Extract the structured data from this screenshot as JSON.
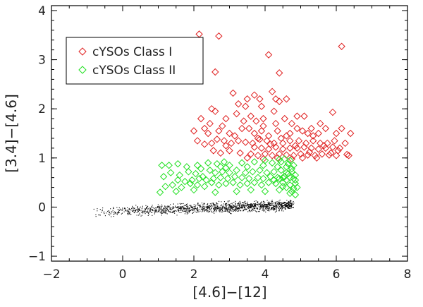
{
  "chart_data": {
    "type": "scatter",
    "title": "",
    "xlabel": "[4.6]−[12]",
    "ylabel": "[3.4]−[4.6]",
    "xlim": [
      -2,
      8
    ],
    "ylim": [
      -1.1,
      4.1
    ],
    "x_ticks": [
      "−2",
      "0",
      "2",
      "4",
      "6",
      "8"
    ],
    "y_ticks": [
      "−1",
      "0",
      "1",
      "2",
      "3",
      "4"
    ],
    "grid": false,
    "legend_position": "top-left",
    "legend": [
      {
        "label": "cYSOs Class I",
        "marker": "diamond",
        "color": "#e02020"
      },
      {
        "label": "cYSOs Class II",
        "marker": "diamond",
        "color": "#22e022"
      }
    ],
    "series": [
      {
        "name": "cYSOs Class I",
        "marker": "diamond",
        "color": "#e02020",
        "points": [
          [
            2.15,
            3.52
          ],
          [
            2.7,
            3.48
          ],
          [
            4.1,
            3.1
          ],
          [
            6.15,
            3.27
          ],
          [
            2.6,
            2.75
          ],
          [
            4.4,
            2.73
          ],
          [
            3.1,
            2.32
          ],
          [
            3.5,
            2.2
          ],
          [
            3.7,
            2.28
          ],
          [
            3.85,
            2.2
          ],
          [
            3.9,
            2.05
          ],
          [
            4.2,
            2.35
          ],
          [
            4.3,
            2.2
          ],
          [
            4.4,
            2.15
          ],
          [
            4.6,
            2.2
          ],
          [
            2.2,
            1.8
          ],
          [
            2.5,
            2.0
          ],
          [
            2.6,
            1.95
          ],
          [
            3.25,
            2.1
          ],
          [
            3.45,
            2.05
          ],
          [
            3.6,
            1.85
          ],
          [
            3.75,
            1.75
          ],
          [
            3.95,
            1.8
          ],
          [
            4.25,
            1.95
          ],
          [
            4.3,
            1.7
          ],
          [
            4.55,
            1.8
          ],
          [
            4.9,
            1.85
          ],
          [
            5.1,
            1.85
          ],
          [
            5.9,
            1.93
          ],
          [
            2.0,
            1.55
          ],
          [
            2.3,
            1.6
          ],
          [
            2.4,
            1.5
          ],
          [
            2.7,
            1.55
          ],
          [
            2.8,
            1.65
          ],
          [
            3.0,
            1.5
          ],
          [
            3.15,
            1.45
          ],
          [
            3.35,
            1.6
          ],
          [
            3.55,
            1.6
          ],
          [
            3.7,
            1.5
          ],
          [
            3.9,
            1.55
          ],
          [
            4.1,
            1.45
          ],
          [
            4.35,
            1.55
          ],
          [
            4.45,
            1.4
          ],
          [
            4.7,
            1.5
          ],
          [
            4.9,
            1.6
          ],
          [
            5.05,
            1.55
          ],
          [
            5.2,
            1.5
          ],
          [
            5.35,
            1.45
          ],
          [
            5.5,
            1.5
          ],
          [
            5.7,
            1.6
          ],
          [
            6.0,
            1.5
          ],
          [
            6.15,
            1.6
          ],
          [
            6.4,
            1.5
          ],
          [
            2.1,
            1.35
          ],
          [
            2.3,
            1.28
          ],
          [
            2.5,
            1.3
          ],
          [
            2.65,
            1.38
          ],
          [
            2.85,
            1.35
          ],
          [
            3.05,
            1.3
          ],
          [
            3.25,
            1.35
          ],
          [
            3.45,
            1.32
          ],
          [
            3.65,
            1.3
          ],
          [
            3.85,
            1.38
          ],
          [
            4.05,
            1.35
          ],
          [
            4.25,
            1.3
          ],
          [
            4.5,
            1.3
          ],
          [
            4.7,
            1.35
          ],
          [
            4.95,
            1.35
          ],
          [
            5.15,
            1.3
          ],
          [
            5.35,
            1.35
          ],
          [
            5.55,
            1.3
          ],
          [
            5.75,
            1.3
          ],
          [
            5.95,
            1.35
          ],
          [
            6.25,
            1.3
          ],
          [
            3.7,
            1.22
          ],
          [
            3.9,
            1.2
          ],
          [
            4.1,
            1.18
          ],
          [
            4.3,
            1.22
          ],
          [
            4.5,
            1.18
          ],
          [
            4.7,
            1.2
          ],
          [
            4.9,
            1.2
          ],
          [
            5.1,
            1.22
          ],
          [
            5.3,
            1.2
          ],
          [
            5.5,
            1.18
          ],
          [
            5.7,
            1.2
          ],
          [
            5.9,
            1.22
          ],
          [
            6.1,
            1.2
          ],
          [
            3.6,
            1.08
          ],
          [
            3.8,
            1.05
          ],
          [
            4.0,
            1.08
          ],
          [
            4.2,
            1.05
          ],
          [
            4.4,
            1.08
          ],
          [
            4.6,
            1.06
          ],
          [
            4.8,
            1.05
          ],
          [
            5.0,
            1.08
          ],
          [
            5.2,
            1.06
          ],
          [
            5.4,
            1.05
          ],
          [
            5.6,
            1.08
          ],
          [
            5.8,
            1.06
          ],
          [
            6.0,
            1.05
          ],
          [
            6.3,
            1.07
          ],
          [
            3.0,
            1.15
          ],
          [
            3.3,
            1.1
          ],
          [
            2.9,
            1.25
          ],
          [
            3.5,
            1.0
          ],
          [
            3.95,
            0.98
          ],
          [
            4.35,
            1.0
          ],
          [
            4.75,
            0.98
          ],
          [
            5.05,
            1.0
          ],
          [
            5.45,
            1.0
          ],
          [
            6.35,
            1.05
          ],
          [
            2.55,
            1.15
          ],
          [
            2.75,
            1.1
          ],
          [
            5.25,
            1.12
          ],
          [
            5.85,
            1.1
          ],
          [
            6.05,
            1.15
          ],
          [
            4.15,
            1.28
          ],
          [
            4.85,
            1.25
          ],
          [
            5.65,
            1.25
          ],
          [
            3.2,
            1.9
          ],
          [
            3.4,
            1.75
          ],
          [
            3.95,
            1.65
          ],
          [
            4.75,
            1.7
          ],
          [
            5.55,
            1.7
          ],
          [
            2.9,
            1.8
          ],
          [
            2.45,
            1.7
          ],
          [
            3.8,
            1.4
          ],
          [
            4.6,
            1.45
          ],
          [
            5.3,
            1.6
          ]
        ]
      },
      {
        "name": "cYSOs Class II",
        "marker": "diamond",
        "color": "#22e022",
        "points": [
          [
            1.1,
            0.85
          ],
          [
            1.3,
            0.85
          ],
          [
            1.55,
            0.88
          ],
          [
            1.8,
            0.82
          ],
          [
            2.1,
            0.85
          ],
          [
            2.4,
            0.9
          ],
          [
            2.65,
            0.88
          ],
          [
            2.85,
            0.92
          ],
          [
            3.0,
            0.85
          ],
          [
            3.35,
            0.9
          ],
          [
            3.7,
            0.92
          ],
          [
            4.0,
            0.95
          ],
          [
            4.2,
            0.9
          ],
          [
            4.45,
            0.92
          ],
          [
            4.65,
            0.88
          ],
          [
            1.15,
            0.62
          ],
          [
            1.35,
            0.7
          ],
          [
            1.6,
            0.65
          ],
          [
            1.85,
            0.72
          ],
          [
            2.05,
            0.68
          ],
          [
            2.25,
            0.62
          ],
          [
            2.45,
            0.75
          ],
          [
            2.6,
            0.7
          ],
          [
            2.8,
            0.72
          ],
          [
            3.0,
            0.7
          ],
          [
            3.2,
            0.75
          ],
          [
            3.45,
            0.7
          ],
          [
            3.65,
            0.72
          ],
          [
            3.85,
            0.75
          ],
          [
            4.05,
            0.7
          ],
          [
            4.25,
            0.72
          ],
          [
            4.45,
            0.75
          ],
          [
            4.6,
            0.7
          ],
          [
            4.75,
            0.72
          ],
          [
            4.85,
            0.65
          ],
          [
            1.2,
            0.42
          ],
          [
            1.4,
            0.45
          ],
          [
            1.65,
            0.4
          ],
          [
            1.9,
            0.48
          ],
          [
            2.1,
            0.45
          ],
          [
            2.3,
            0.42
          ],
          [
            2.5,
            0.5
          ],
          [
            2.7,
            0.45
          ],
          [
            2.9,
            0.48
          ],
          [
            3.1,
            0.5
          ],
          [
            3.3,
            0.45
          ],
          [
            3.5,
            0.48
          ],
          [
            3.7,
            0.5
          ],
          [
            3.9,
            0.45
          ],
          [
            4.1,
            0.5
          ],
          [
            4.3,
            0.48
          ],
          [
            4.5,
            0.5
          ],
          [
            4.7,
            0.45
          ],
          [
            4.85,
            0.48
          ],
          [
            1.05,
            0.3
          ],
          [
            1.5,
            0.32
          ],
          [
            2.0,
            0.35
          ],
          [
            2.6,
            0.3
          ],
          [
            3.2,
            0.32
          ],
          [
            3.6,
            0.35
          ],
          [
            4.0,
            0.32
          ],
          [
            4.4,
            0.35
          ],
          [
            4.75,
            0.32
          ],
          [
            4.6,
            0.55
          ],
          [
            4.7,
            0.6
          ],
          [
            4.8,
            0.58
          ],
          [
            4.55,
            0.62
          ],
          [
            4.65,
            0.68
          ],
          [
            4.75,
            0.78
          ],
          [
            4.8,
            0.85
          ],
          [
            4.6,
            0.82
          ],
          [
            4.5,
            0.6
          ],
          [
            4.4,
            0.58
          ],
          [
            4.85,
            0.55
          ],
          [
            4.9,
            0.4
          ],
          [
            4.8,
            0.38
          ],
          [
            4.7,
            0.28
          ],
          [
            4.85,
            0.25
          ],
          [
            4.6,
            0.4
          ],
          [
            4.5,
            0.42
          ],
          [
            4.35,
            0.6
          ],
          [
            4.25,
            0.55
          ],
          [
            4.15,
            0.62
          ],
          [
            3.95,
            0.58
          ],
          [
            3.8,
            0.6
          ],
          [
            3.55,
            0.58
          ],
          [
            3.35,
            0.6
          ],
          [
            3.15,
            0.62
          ],
          [
            2.95,
            0.58
          ],
          [
            2.75,
            0.6
          ],
          [
            2.55,
            0.58
          ],
          [
            2.35,
            0.55
          ],
          [
            2.15,
            0.58
          ],
          [
            1.95,
            0.55
          ],
          [
            1.75,
            0.52
          ],
          [
            1.55,
            0.55
          ],
          [
            2.2,
            0.78
          ],
          [
            2.9,
            0.8
          ],
          [
            3.5,
            0.82
          ],
          [
            3.95,
            0.85
          ],
          [
            4.35,
            0.82
          ],
          [
            4.7,
            0.95
          ],
          [
            4.55,
            0.98
          ],
          [
            4.4,
            0.97
          ],
          [
            2.75,
            0.82
          ]
        ]
      },
      {
        "name": "",
        "marker": "dot",
        "color": "#000000",
        "band": {
          "x_range": [
            -0.9,
            4.8
          ],
          "y_at_x_start": -0.1,
          "y_at_x_end": 0.05,
          "spread": 0.1
        }
      }
    ]
  }
}
